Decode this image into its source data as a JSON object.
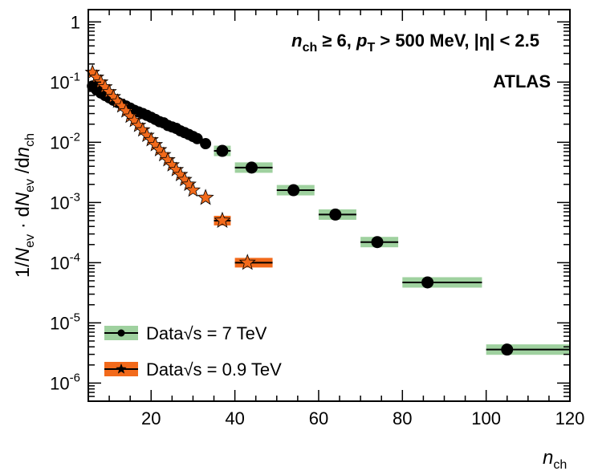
{
  "chart_data": {
    "type": "scatter",
    "yscale": "log",
    "xlim": [
      5,
      120
    ],
    "ylim": [
      5e-07,
      1.6
    ],
    "xticks": [
      20,
      40,
      60,
      80,
      100,
      120
    ],
    "yticks": [
      {
        "value": 1,
        "mantissa": "1",
        "exp": ""
      },
      {
        "value": 0.1,
        "mantissa": "10",
        "exp": "-1"
      },
      {
        "value": 0.01,
        "mantissa": "10",
        "exp": "-2"
      },
      {
        "value": 0.001,
        "mantissa": "10",
        "exp": "-3"
      },
      {
        "value": 0.0001,
        "mantissa": "10",
        "exp": "-4"
      },
      {
        "value": 1e-05,
        "mantissa": "10",
        "exp": "-5"
      },
      {
        "value": 1e-06,
        "mantissa": "10",
        "exp": "-6"
      }
    ],
    "xlabel": {
      "main": "n",
      "sub": "ch"
    },
    "ylabel": "1/N_ev · dN_ev /dn_ch",
    "annotation": "n_ch ≥ 6, p_T > 500 MeV, |η| < 2.5",
    "experiment_label": "ATLAS",
    "legend_position": "bottom-left",
    "colors": {
      "data7": "#000000",
      "band7": "#9fd19f",
      "data09": "#f26a1b",
      "band09": "#f26a1b"
    },
    "series": [
      {
        "name": "Data√s = 7 TeV",
        "marker": "circle",
        "points": [
          {
            "x": 6,
            "y": 0.086
          },
          {
            "x": 7,
            "y": 0.074
          },
          {
            "x": 8,
            "y": 0.066
          },
          {
            "x": 9,
            "y": 0.06
          },
          {
            "x": 10,
            "y": 0.055
          },
          {
            "x": 11,
            "y": 0.05
          },
          {
            "x": 12,
            "y": 0.046
          },
          {
            "x": 13,
            "y": 0.043
          },
          {
            "x": 14,
            "y": 0.04
          },
          {
            "x": 15,
            "y": 0.037
          },
          {
            "x": 16,
            "y": 0.034
          },
          {
            "x": 17,
            "y": 0.032
          },
          {
            "x": 18,
            "y": 0.03
          },
          {
            "x": 19,
            "y": 0.028
          },
          {
            "x": 20,
            "y": 0.026
          },
          {
            "x": 21,
            "y": 0.024
          },
          {
            "x": 22,
            "y": 0.022
          },
          {
            "x": 23,
            "y": 0.021
          },
          {
            "x": 24,
            "y": 0.019
          },
          {
            "x": 25,
            "y": 0.018
          },
          {
            "x": 26,
            "y": 0.017
          },
          {
            "x": 27,
            "y": 0.0155
          },
          {
            "x": 28,
            "y": 0.0145
          },
          {
            "x": 29,
            "y": 0.0135
          },
          {
            "x": 30,
            "y": 0.0125
          },
          {
            "x": 31,
            "y": 0.0115
          },
          {
            "x": 33,
            "y": 0.0095
          },
          {
            "x": 37,
            "y": 0.0072,
            "xlo": 35,
            "xhi": 39
          },
          {
            "x": 44,
            "y": 0.0038,
            "xlo": 40,
            "xhi": 49
          },
          {
            "x": 54,
            "y": 0.0016,
            "xlo": 50,
            "xhi": 59
          },
          {
            "x": 64,
            "y": 0.00063,
            "xlo": 60,
            "xhi": 69
          },
          {
            "x": 74,
            "y": 0.00022,
            "xlo": 70,
            "xhi": 79
          },
          {
            "x": 86,
            "y": 4.7e-05,
            "xlo": 80,
            "xhi": 99
          },
          {
            "x": 105,
            "y": 3.6e-06,
            "xlo": 100,
            "xhi": 120
          }
        ]
      },
      {
        "name": "Data√s = 0.9 TeV",
        "marker": "star",
        "points": [
          {
            "x": 6,
            "y": 0.145
          },
          {
            "x": 7,
            "y": 0.12
          },
          {
            "x": 8,
            "y": 0.1
          },
          {
            "x": 9,
            "y": 0.083
          },
          {
            "x": 10,
            "y": 0.069
          },
          {
            "x": 11,
            "y": 0.057
          },
          {
            "x": 12,
            "y": 0.048
          },
          {
            "x": 13,
            "y": 0.04
          },
          {
            "x": 14,
            "y": 0.033
          },
          {
            "x": 15,
            "y": 0.027
          },
          {
            "x": 16,
            "y": 0.023
          },
          {
            "x": 17,
            "y": 0.019
          },
          {
            "x": 18,
            "y": 0.016
          },
          {
            "x": 19,
            "y": 0.013
          },
          {
            "x": 20,
            "y": 0.011
          },
          {
            "x": 21,
            "y": 0.0091
          },
          {
            "x": 22,
            "y": 0.0075
          },
          {
            "x": 23,
            "y": 0.0062
          },
          {
            "x": 24,
            "y": 0.0051
          },
          {
            "x": 25,
            "y": 0.0042
          },
          {
            "x": 26,
            "y": 0.0035
          },
          {
            "x": 27,
            "y": 0.0029
          },
          {
            "x": 28,
            "y": 0.0024
          },
          {
            "x": 29,
            "y": 0.002
          },
          {
            "x": 30,
            "y": 0.0016
          },
          {
            "x": 33,
            "y": 0.0012
          },
          {
            "x": 37,
            "y": 0.0005,
            "xlo": 35,
            "xhi": 39
          },
          {
            "x": 43,
            "y": 0.0001,
            "xlo": 40,
            "xhi": 49
          }
        ]
      }
    ]
  }
}
